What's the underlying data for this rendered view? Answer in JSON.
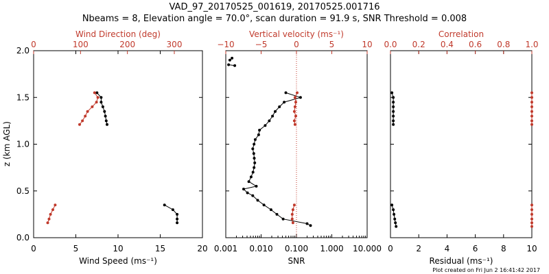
{
  "colors": {
    "black": "#000000",
    "red": "#c0392b",
    "axis": "#000000"
  },
  "chart_data": {
    "type": "line",
    "title": "VAD_97_20170525_001619, 20170525.001716",
    "subtitle": "Nbeams = 8, Elevation angle = 70.0°, scan duration = 91.9 s, SNR Threshold = 0.008",
    "footer": "Plot created on Fri Jun  2 16:41:42 2017",
    "ylabel": "z (km AGL)",
    "ylim": [
      0,
      2
    ],
    "yticks": [
      "0.0",
      "0.5",
      "1.0",
      "1.5",
      "2.0"
    ],
    "ytick_values": [
      0,
      0.5,
      1.0,
      1.5,
      2.0
    ],
    "panels": [
      {
        "name": "wind",
        "bottom_axis": {
          "label": "Wind Speed (ms⁻¹)",
          "ticks": [
            "0",
            "5",
            "10",
            "15",
            "20"
          ],
          "tick_values": [
            0,
            5,
            10,
            15,
            20
          ],
          "range": [
            0,
            20
          ],
          "scale": "linear"
        },
        "top_axis": {
          "label": "Wind Direction (deg)",
          "ticks": [
            "0",
            "100",
            "200",
            "300"
          ],
          "tick_values": [
            0,
            100,
            200,
            300
          ],
          "range": [
            0,
            360
          ],
          "scale": "linear"
        },
        "series": [
          {
            "name": "Wind Speed",
            "color": "black",
            "axis": "bottom",
            "segments": [
              [
                [
                  7.5,
                  1.55
                ],
                [
                  8.0,
                  1.5
                ],
                [
                  8.0,
                  1.45
                ],
                [
                  8.2,
                  1.4
                ],
                [
                  8.4,
                  1.35
                ],
                [
                  8.5,
                  1.3
                ],
                [
                  8.6,
                  1.25
                ],
                [
                  8.7,
                  1.21
                ]
              ],
              [
                [
                  15.5,
                  0.35
                ],
                [
                  16.5,
                  0.3
                ],
                [
                  17.0,
                  0.25
                ],
                [
                  17.0,
                  0.2
                ],
                [
                  17.0,
                  0.16
                ]
              ]
            ]
          },
          {
            "name": "Wind Direction",
            "color": "red",
            "axis": "top",
            "segments": [
              [
                [
                  130,
                  1.55
                ],
                [
                  137,
                  1.5
                ],
                [
                  134,
                  1.45
                ],
                [
                  125,
                  1.4
                ],
                [
                  115,
                  1.35
                ],
                [
                  110,
                  1.3
                ],
                [
                  104,
                  1.25
                ],
                [
                  98,
                  1.21
                ]
              ],
              [
                [
                  46,
                  0.35
                ],
                [
                  41,
                  0.3
                ],
                [
                  36,
                  0.25
                ],
                [
                  33,
                  0.2
                ],
                [
                  30,
                  0.16
                ]
              ]
            ]
          }
        ]
      },
      {
        "name": "snr",
        "bottom_axis": {
          "label": "SNR",
          "ticks": [
            "0.001",
            "0.010",
            "0.100",
            "1.000",
            "10.000"
          ],
          "tick_values": [
            0.001,
            0.01,
            0.1,
            1,
            10
          ],
          "range": [
            0.001,
            10
          ],
          "scale": "log"
        },
        "top_axis": {
          "label": "Vertical velocity (ms⁻¹)",
          "ticks": [
            "−10",
            "−5",
            "0",
            "5",
            "10"
          ],
          "tick_values": [
            -10,
            -5,
            0,
            5,
            10
          ],
          "range": [
            -10,
            10
          ],
          "scale": "linear"
        },
        "refline": {
          "axis": "top",
          "value": 0
        },
        "series": [
          {
            "name": "SNR",
            "color": "black",
            "axis": "bottom",
            "segments": [
              [
                [
                  0.0015,
                  1.92
                ],
                [
                  0.0013,
                  1.9
                ]
              ],
              [
                [
                  0.0012,
                  1.85
                ],
                [
                  0.0018,
                  1.84
                ]
              ],
              [
                [
                  0.05,
                  1.55
                ],
                [
                  0.13,
                  1.5
                ],
                [
                  0.045,
                  1.45
                ],
                [
                  0.033,
                  1.4
                ],
                [
                  0.025,
                  1.35
                ],
                [
                  0.021,
                  1.3
                ],
                [
                  0.017,
                  1.25
                ],
                [
                  0.013,
                  1.2
                ],
                [
                  0.009,
                  1.15
                ],
                [
                  0.0085,
                  1.1
                ],
                [
                  0.0068,
                  1.05
                ],
                [
                  0.0063,
                  1.0
                ],
                [
                  0.0058,
                  0.95
                ],
                [
                  0.0062,
                  0.9
                ],
                [
                  0.0064,
                  0.85
                ],
                [
                  0.0066,
                  0.8
                ],
                [
                  0.0063,
                  0.75
                ],
                [
                  0.0059,
                  0.7
                ],
                [
                  0.0052,
                  0.65
                ],
                [
                  0.0045,
                  0.6
                ],
                [
                  0.0073,
                  0.55
                ],
                [
                  0.0032,
                  0.52
                ],
                [
                  0.0041,
                  0.48
                ],
                [
                  0.0058,
                  0.45
                ],
                [
                  0.008,
                  0.4
                ],
                [
                  0.012,
                  0.35
                ],
                [
                  0.019,
                  0.3
                ],
                [
                  0.028,
                  0.25
                ],
                [
                  0.042,
                  0.2
                ],
                [
                  0.2,
                  0.15
                ],
                [
                  0.25,
                  0.13
                ]
              ]
            ]
          },
          {
            "name": "Vertical velocity",
            "color": "red",
            "axis": "top",
            "segments": [
              [
                [
                  0.1,
                  1.55
                ],
                [
                  -0.2,
                  1.5
                ],
                [
                  -0.1,
                  1.45
                ],
                [
                  -0.2,
                  1.4
                ],
                [
                  -0.3,
                  1.35
                ],
                [
                  -0.1,
                  1.3
                ],
                [
                  -0.3,
                  1.25
                ],
                [
                  -0.2,
                  1.21
                ]
              ],
              [
                [
                  -0.3,
                  0.35
                ],
                [
                  -0.5,
                  0.3
                ],
                [
                  -0.6,
                  0.25
                ],
                [
                  -0.6,
                  0.2
                ],
                [
                  -0.5,
                  0.16
                ]
              ]
            ]
          }
        ]
      },
      {
        "name": "residual",
        "bottom_axis": {
          "label": "Residual (ms⁻¹)",
          "ticks": [
            "0",
            "2",
            "4",
            "6",
            "8",
            "10"
          ],
          "tick_values": [
            0,
            2,
            4,
            6,
            8,
            10
          ],
          "range": [
            0,
            10
          ],
          "scale": "linear"
        },
        "top_axis": {
          "label": "Correlation",
          "ticks": [
            "0.0",
            "0.2",
            "0.4",
            "0.6",
            "0.8",
            "1.0"
          ],
          "tick_values": [
            0,
            0.2,
            0.4,
            0.6,
            0.8,
            1.0
          ],
          "range": [
            0,
            1
          ],
          "scale": "linear"
        },
        "series": [
          {
            "name": "Residual",
            "color": "black",
            "axis": "bottom",
            "segments": [
              [
                [
                  0.1,
                  1.55
                ],
                [
                  0.2,
                  1.5
                ],
                [
                  0.2,
                  1.45
                ],
                [
                  0.2,
                  1.4
                ],
                [
                  0.2,
                  1.35
                ],
                [
                  0.2,
                  1.3
                ],
                [
                  0.2,
                  1.25
                ],
                [
                  0.2,
                  1.21
                ]
              ],
              [
                [
                  0.1,
                  0.35
                ],
                [
                  0.2,
                  0.3
                ],
                [
                  0.25,
                  0.25
                ],
                [
                  0.3,
                  0.2
                ],
                [
                  0.35,
                  0.16
                ],
                [
                  0.4,
                  0.12
                ]
              ]
            ]
          },
          {
            "name": "Correlation",
            "color": "red",
            "axis": "top",
            "segments": [
              [
                [
                  1.0,
                  1.55
                ],
                [
                  1.0,
                  1.5
                ],
                [
                  1.0,
                  1.45
                ],
                [
                  1.0,
                  1.4
                ],
                [
                  1.0,
                  1.35
                ],
                [
                  1.0,
                  1.3
                ],
                [
                  1.0,
                  1.25
                ],
                [
                  1.0,
                  1.21
                ]
              ],
              [
                [
                  1.0,
                  0.35
                ],
                [
                  1.0,
                  0.3
                ],
                [
                  1.0,
                  0.25
                ],
                [
                  1.0,
                  0.2
                ],
                [
                  1.0,
                  0.16
                ],
                [
                  1.0,
                  0.12
                ]
              ]
            ]
          }
        ]
      }
    ]
  }
}
